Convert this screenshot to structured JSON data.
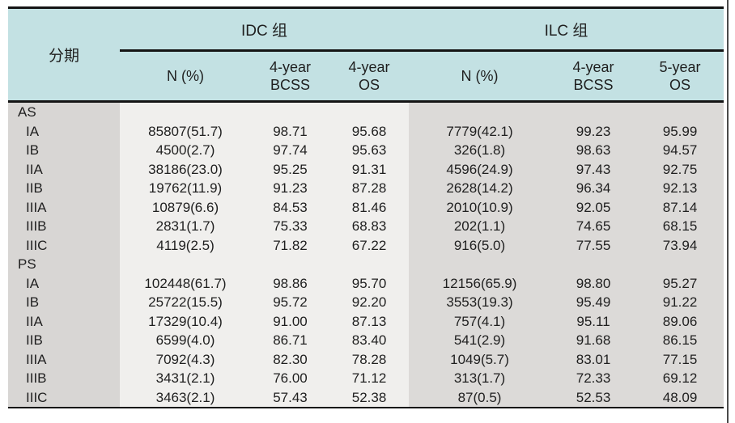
{
  "colors": {
    "header_bg": "#c3e1e3",
    "stage_band_bg": "#d8d6d4",
    "idc_band_bg": "#f0efed",
    "ilc_band_bg": "#dcdad8",
    "border": "#141414",
    "text": "#1f1f1f"
  },
  "table": {
    "stage_header": "分期",
    "groups": [
      {
        "id": "idc",
        "label": "IDC 组",
        "subcolumns": [
          {
            "line1": "N (%)",
            "line2": ""
          },
          {
            "line1": "4-year",
            "line2": "BCSS"
          },
          {
            "line1": "4-year",
            "line2": "OS"
          }
        ]
      },
      {
        "id": "ilc",
        "label": "ILC 组",
        "subcolumns": [
          {
            "line1": "N (%)",
            "line2": ""
          },
          {
            "line1": "4-year",
            "line2": "BCSS"
          },
          {
            "line1": "5-year",
            "line2": "OS"
          }
        ]
      }
    ],
    "sections": [
      {
        "label": "AS",
        "rows": [
          {
            "stage": "IA",
            "idc_n": "85807(51.7)",
            "idc_bcss": "98.71",
            "idc_os": "95.68",
            "ilc_n": "7779(42.1)",
            "ilc_bcss": "99.23",
            "ilc_os": "95.99"
          },
          {
            "stage": "IB",
            "idc_n": "4500(2.7)",
            "idc_bcss": "97.74",
            "idc_os": "95.63",
            "ilc_n": "326(1.8)",
            "ilc_bcss": "98.63",
            "ilc_os": "94.57"
          },
          {
            "stage": "IIA",
            "idc_n": "38186(23.0)",
            "idc_bcss": "95.25",
            "idc_os": "91.31",
            "ilc_n": "4596(24.9)",
            "ilc_bcss": "97.43",
            "ilc_os": "92.75"
          },
          {
            "stage": "IIB",
            "idc_n": "19762(11.9)",
            "idc_bcss": "91.23",
            "idc_os": "87.28",
            "ilc_n": "2628(14.2)",
            "ilc_bcss": "96.34",
            "ilc_os": "92.13"
          },
          {
            "stage": "IIIA",
            "idc_n": "10879(6.6)",
            "idc_bcss": "84.53",
            "idc_os": "81.46",
            "ilc_n": "2010(10.9)",
            "ilc_bcss": "92.05",
            "ilc_os": "87.14"
          },
          {
            "stage": "IIIB",
            "idc_n": "2831(1.7)",
            "idc_bcss": "75.33",
            "idc_os": "68.83",
            "ilc_n": "202(1.1)",
            "ilc_bcss": "74.65",
            "ilc_os": "68.15"
          },
          {
            "stage": "IIIC",
            "idc_n": "4119(2.5)",
            "idc_bcss": "71.82",
            "idc_os": "67.22",
            "ilc_n": "916(5.0)",
            "ilc_bcss": "77.55",
            "ilc_os": "73.94"
          }
        ]
      },
      {
        "label": "PS",
        "rows": [
          {
            "stage": "IA",
            "idc_n": "102448(61.7)",
            "idc_bcss": "98.86",
            "idc_os": "95.70",
            "ilc_n": "12156(65.9)",
            "ilc_bcss": "98.80",
            "ilc_os": "95.27"
          },
          {
            "stage": "IB",
            "idc_n": "25722(15.5)",
            "idc_bcss": "95.72",
            "idc_os": "92.20",
            "ilc_n": "3553(19.3)",
            "ilc_bcss": "95.49",
            "ilc_os": "91.22"
          },
          {
            "stage": "IIA",
            "idc_n": "17329(10.4)",
            "idc_bcss": "91.00",
            "idc_os": "87.13",
            "ilc_n": "757(4.1)",
            "ilc_bcss": "95.11",
            "ilc_os": "89.06"
          },
          {
            "stage": "IIB",
            "idc_n": "6599(4.0)",
            "idc_bcss": "86.71",
            "idc_os": "83.40",
            "ilc_n": "541(2.9)",
            "ilc_bcss": "91.68",
            "ilc_os": "86.15"
          },
          {
            "stage": "IIIA",
            "idc_n": "7092(4.3)",
            "idc_bcss": "82.30",
            "idc_os": "78.28",
            "ilc_n": "1049(5.7)",
            "ilc_bcss": "83.01",
            "ilc_os": "77.15"
          },
          {
            "stage": "IIIB",
            "idc_n": "3431(2.1)",
            "idc_bcss": "76.00",
            "idc_os": "71.12",
            "ilc_n": "313(1.7)",
            "ilc_bcss": "72.33",
            "ilc_os": "69.12"
          },
          {
            "stage": "IIIC",
            "idc_n": "3463(2.1)",
            "idc_bcss": "57.43",
            "idc_os": "52.38",
            "ilc_n": "87(0.5)",
            "ilc_bcss": "52.53",
            "ilc_os": "48.09"
          }
        ]
      }
    ]
  }
}
